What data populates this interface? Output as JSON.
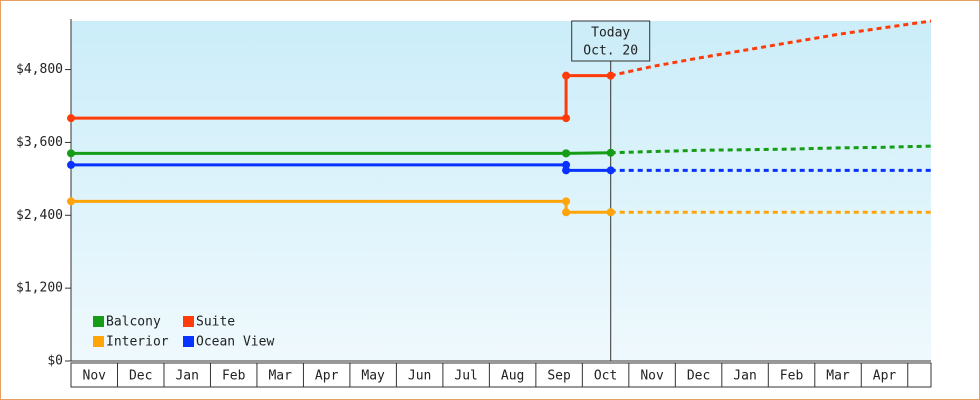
{
  "chart_data": {
    "type": "line",
    "categories": [
      "Nov",
      "Dec",
      "Jan",
      "Feb",
      "Mar",
      "Apr",
      "May",
      "Jun",
      "Jul",
      "Aug",
      "Sep",
      "Oct",
      "Nov",
      "Dec",
      "Jan",
      "Feb",
      "Mar",
      "Apr"
    ],
    "x": [
      0,
      10.65,
      10.65,
      11.61
    ],
    "forecast_x": [
      11.61,
      12.5,
      13.5,
      14.5,
      15.5,
      16.5,
      17.5,
      18.5
    ],
    "xlim": [
      0,
      18.5
    ],
    "ylim": [
      0,
      5600
    ],
    "yticks": [
      {
        "value": 0,
        "label": "$0"
      },
      {
        "value": 1200,
        "label": "$1,200"
      },
      {
        "value": 2400,
        "label": "$2,400"
      },
      {
        "value": 3600,
        "label": "$3,600"
      },
      {
        "value": 4800,
        "label": "$4,800"
      }
    ],
    "series": [
      {
        "name": "Balcony",
        "color": "#169c16",
        "values": [
          3420,
          3420,
          3420,
          3430
        ],
        "forecast": [
          3430,
          3450,
          3470,
          3480,
          3490,
          3510,
          3520,
          3540
        ]
      },
      {
        "name": "Suite",
        "color": "#ff3b0a",
        "values": [
          4000,
          4000,
          4700,
          4700
        ],
        "forecast": [
          4700,
          4850,
          4990,
          5120,
          5250,
          5380,
          5490,
          5600
        ]
      },
      {
        "name": "Interior",
        "color": "#ffa50a",
        "values": [
          2630,
          2630,
          2450,
          2450
        ],
        "forecast": [
          2450,
          2450,
          2450,
          2450,
          2450,
          2450,
          2450,
          2450
        ]
      },
      {
        "name": "Ocean View",
        "color": "#0a32ff",
        "values": [
          3230,
          3230,
          3140,
          3140
        ],
        "forecast": [
          3140,
          3140,
          3140,
          3140,
          3140,
          3140,
          3140,
          3140
        ]
      }
    ],
    "annotation": {
      "x": 11.61,
      "lines": [
        "Today",
        "Oct. 20"
      ]
    },
    "legend": "bottom-left"
  }
}
